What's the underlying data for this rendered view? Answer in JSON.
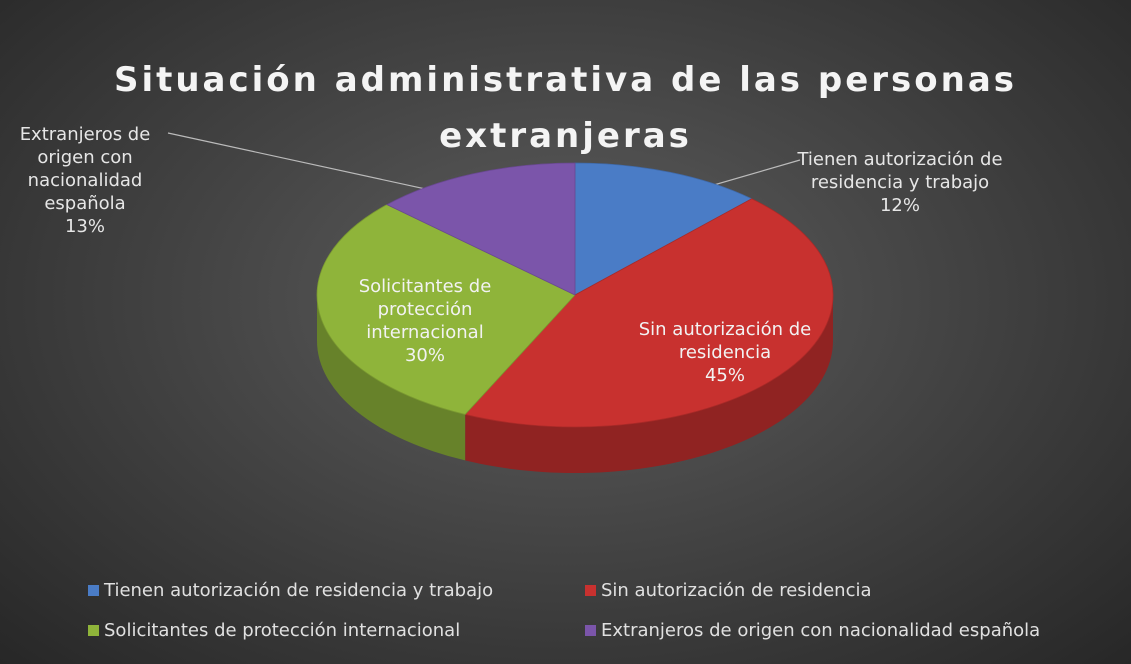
{
  "chart_data": {
    "type": "pie3d",
    "title": "Situación administrativa de las personas extranjeras",
    "categories": [
      "Tienen autorización de residencia y trabajo",
      "Sin autorización de residencia",
      "Solicitantes de protección internacional",
      "Extranjeros de origen con nacionalidad española"
    ],
    "values": [
      12,
      45,
      30,
      13
    ],
    "value_labels": [
      "12%",
      "45%",
      "30%",
      "13%"
    ],
    "colors": [
      "#4a7cc6",
      "#c8312f",
      "#8fb43a",
      "#7b55aa"
    ],
    "legend": "bottom"
  }
}
